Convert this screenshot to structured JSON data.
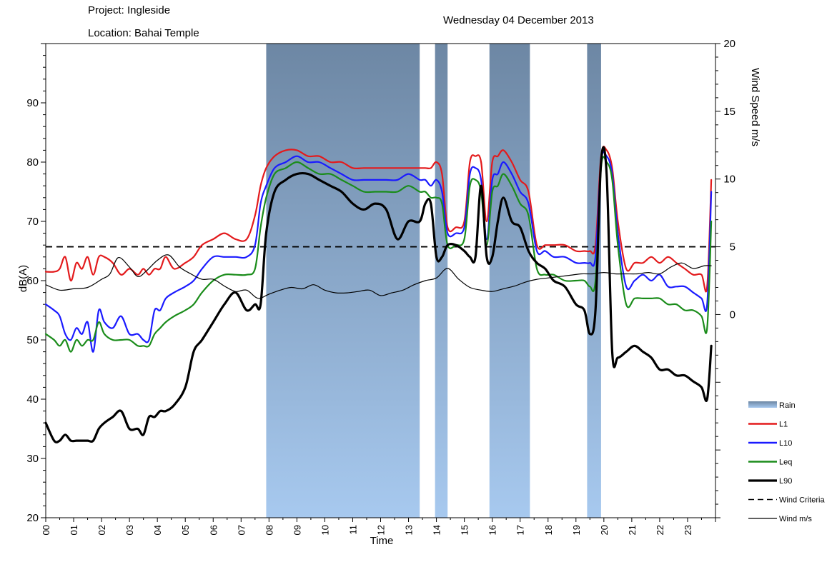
{
  "header": {
    "project": "Project: Ingleside",
    "location": "Location:  Bahai Temple",
    "date": "Wednesday 04 December 2013"
  },
  "chart_data": {
    "type": "line",
    "xlabel": "Time",
    "ylabel": "dB(A)",
    "y2label": "Wind Speed m/s",
    "xlim": [
      0,
      24
    ],
    "ylim": [
      20,
      100
    ],
    "y2lim": [
      -15,
      20
    ],
    "y_ticks": [
      "20",
      "30",
      "40",
      "50",
      "60",
      "70",
      "80",
      "90"
    ],
    "y2_ticks": [
      "20",
      "15",
      "10",
      "5",
      "0"
    ],
    "x_tick_labels": [
      "00",
      "01",
      "02",
      "03",
      "04",
      "05",
      "06",
      "07",
      "08",
      "09",
      "10",
      "11",
      "12",
      "13",
      "14",
      "15",
      "16",
      "17",
      "18",
      "19",
      "20",
      "21",
      "22",
      "23"
    ],
    "grid": false,
    "legend_position": "right-bottom",
    "legend": [
      "Rain",
      "L1",
      "L10",
      "Leq",
      "L90",
      "Wind Criteria",
      "Wind m/s"
    ],
    "rain_periods": [
      [
        7.9,
        13.4
      ],
      [
        13.95,
        14.4
      ],
      [
        15.9,
        17.35
      ],
      [
        19.4,
        19.9
      ]
    ],
    "wind_criteria": 5,
    "series": [
      {
        "name": "L1",
        "color": "#e31a1c",
        "axis": "left",
        "x": [
          0,
          0.3,
          0.5,
          0.7,
          0.9,
          1.1,
          1.3,
          1.5,
          1.7,
          1.9,
          2.1,
          2.4,
          2.7,
          3.0,
          3.3,
          3.5,
          3.7,
          3.9,
          4.1,
          4.3,
          4.6,
          5.0,
          5.3,
          5.6,
          6.0,
          6.4,
          6.8,
          7.2,
          7.5,
          7.7,
          7.9,
          8.2,
          8.6,
          9.0,
          9.4,
          9.8,
          10.2,
          10.6,
          11.0,
          11.4,
          11.8,
          12.2,
          12.6,
          13.0,
          13.4,
          13.6,
          13.8,
          14.0,
          14.2,
          14.4,
          14.7,
          15.0,
          15.2,
          15.4,
          15.6,
          15.8,
          16.0,
          16.2,
          16.4,
          16.7,
          17.0,
          17.3,
          17.6,
          17.9,
          18.2,
          18.6,
          19.0,
          19.3,
          19.5,
          19.7,
          19.9,
          20.1,
          20.3,
          20.5,
          20.8,
          21.1,
          21.4,
          21.7,
          22.0,
          22.3,
          22.6,
          22.9,
          23.2,
          23.5,
          23.7,
          23.85
        ],
        "y": [
          61.5,
          61.5,
          62,
          64,
          60,
          63,
          62,
          64,
          61,
          64,
          64,
          63,
          61,
          62,
          61,
          62,
          61,
          62,
          62,
          64,
          62,
          63,
          64,
          66,
          67,
          68,
          67,
          67,
          71,
          76,
          79,
          81,
          82,
          82,
          81,
          81,
          80,
          80,
          79,
          79,
          79,
          79,
          79,
          79,
          79,
          79,
          79,
          80,
          78,
          69,
          69,
          70,
          80,
          81,
          80,
          70,
          80,
          81,
          82,
          80,
          77,
          75,
          66,
          66,
          66,
          66,
          65,
          65,
          65,
          66,
          81,
          82,
          79,
          70,
          62,
          63,
          63,
          64,
          63,
          64,
          63,
          62,
          61,
          61,
          59,
          77
        ]
      },
      {
        "name": "L10",
        "color": "#1a1aff",
        "axis": "left",
        "x": [
          0,
          0.3,
          0.5,
          0.7,
          0.9,
          1.1,
          1.3,
          1.5,
          1.7,
          1.9,
          2.1,
          2.4,
          2.7,
          3.0,
          3.3,
          3.5,
          3.7,
          3.9,
          4.1,
          4.3,
          4.6,
          5.0,
          5.3,
          5.6,
          6.0,
          6.4,
          6.8,
          7.2,
          7.5,
          7.7,
          7.9,
          8.2,
          8.6,
          9.0,
          9.4,
          9.8,
          10.2,
          10.6,
          11.0,
          11.4,
          11.8,
          12.2,
          12.6,
          13.0,
          13.4,
          13.6,
          13.8,
          14.0,
          14.2,
          14.4,
          14.7,
          15.0,
          15.2,
          15.4,
          15.6,
          15.8,
          16.0,
          16.2,
          16.4,
          16.7,
          17.0,
          17.3,
          17.6,
          17.9,
          18.2,
          18.6,
          19.0,
          19.3,
          19.5,
          19.7,
          19.9,
          20.1,
          20.3,
          20.5,
          20.8,
          21.1,
          21.4,
          21.7,
          22.0,
          22.3,
          22.6,
          22.9,
          23.2,
          23.5,
          23.7,
          23.85
        ],
        "y": [
          56,
          55,
          54,
          51,
          50,
          52,
          51,
          53,
          48,
          55,
          53,
          52,
          54,
          51,
          51,
          50,
          50,
          55,
          55,
          57,
          58,
          59,
          60,
          62,
          64,
          64,
          64,
          64,
          66,
          73,
          76,
          79,
          80,
          81,
          80,
          80,
          79,
          78,
          77,
          77,
          77,
          77,
          77,
          78,
          77,
          77,
          76,
          77,
          75,
          68,
          68,
          69,
          78,
          79,
          77,
          67,
          77,
          78,
          80,
          78,
          75,
          73,
          65,
          65,
          64,
          64,
          63,
          63,
          63,
          64,
          80,
          81,
          78,
          68,
          59,
          60,
          61,
          60,
          61,
          59,
          59,
          59,
          58,
          57,
          56,
          75
        ]
      },
      {
        "name": "Leq",
        "color": "#1a8c1a",
        "axis": "left",
        "x": [
          0,
          0.3,
          0.5,
          0.7,
          0.9,
          1.1,
          1.3,
          1.5,
          1.7,
          1.9,
          2.1,
          2.4,
          2.7,
          3.0,
          3.3,
          3.5,
          3.7,
          3.9,
          4.1,
          4.3,
          4.6,
          5.0,
          5.3,
          5.6,
          6.0,
          6.4,
          6.8,
          7.2,
          7.5,
          7.7,
          7.9,
          8.2,
          8.6,
          9.0,
          9.4,
          9.8,
          10.2,
          10.6,
          11.0,
          11.4,
          11.8,
          12.2,
          12.6,
          13.0,
          13.4,
          13.6,
          13.8,
          14.0,
          14.2,
          14.4,
          14.7,
          15.0,
          15.2,
          15.4,
          15.6,
          15.8,
          16.0,
          16.2,
          16.4,
          16.7,
          17.0,
          17.3,
          17.6,
          17.9,
          18.2,
          18.6,
          19.0,
          19.3,
          19.5,
          19.7,
          19.9,
          20.1,
          20.3,
          20.5,
          20.8,
          21.1,
          21.4,
          21.7,
          22.0,
          22.3,
          22.6,
          22.9,
          23.2,
          23.5,
          23.7,
          23.85
        ],
        "y": [
          51,
          50,
          49,
          50,
          48,
          50,
          49,
          50,
          50,
          53,
          51,
          50,
          50,
          50,
          49,
          49,
          49,
          51,
          52,
          53,
          54,
          55,
          56,
          58,
          60,
          61,
          61,
          61,
          62,
          69,
          74,
          78,
          79,
          80,
          79,
          78,
          78,
          77,
          76,
          75,
          75,
          75,
          75,
          76,
          75,
          75,
          74,
          74,
          73,
          66,
          66,
          67,
          76,
          77,
          75,
          66,
          75,
          76,
          78,
          76,
          73,
          71,
          62,
          61,
          61,
          60,
          60,
          60,
          59,
          60,
          79,
          80,
          77,
          66,
          56,
          57,
          57,
          57,
          57,
          56,
          56,
          55,
          55,
          54,
          52,
          70
        ]
      },
      {
        "name": "L90",
        "color": "#000000",
        "axis": "left",
        "x": [
          0,
          0.3,
          0.5,
          0.7,
          0.9,
          1.1,
          1.3,
          1.5,
          1.7,
          1.9,
          2.1,
          2.4,
          2.7,
          3.0,
          3.3,
          3.5,
          3.7,
          3.9,
          4.1,
          4.3,
          4.6,
          5.0,
          5.3,
          5.6,
          6.0,
          6.4,
          6.8,
          7.2,
          7.5,
          7.7,
          7.9,
          8.2,
          8.6,
          9.0,
          9.4,
          9.8,
          10.2,
          10.6,
          11.0,
          11.4,
          11.8,
          12.2,
          12.6,
          13.0,
          13.4,
          13.6,
          13.8,
          14.0,
          14.2,
          14.4,
          14.7,
          15.0,
          15.2,
          15.4,
          15.6,
          15.8,
          16.0,
          16.2,
          16.4,
          16.7,
          17.0,
          17.3,
          17.6,
          17.9,
          18.2,
          18.6,
          19.0,
          19.3,
          19.5,
          19.7,
          19.9,
          20.1,
          20.3,
          20.5,
          20.8,
          21.1,
          21.4,
          21.7,
          22.0,
          22.3,
          22.6,
          22.9,
          23.2,
          23.5,
          23.7,
          23.85
        ],
        "y": [
          36,
          33,
          33,
          34,
          33,
          33,
          33,
          33,
          33,
          35,
          36,
          37,
          38,
          35,
          35,
          34,
          37,
          37,
          38,
          38,
          39,
          42,
          48,
          50,
          53,
          56,
          58,
          55,
          56,
          56,
          68,
          75,
          77,
          78,
          78,
          77,
          76,
          75,
          73,
          72,
          73,
          72,
          67,
          70,
          70,
          73,
          73,
          64,
          64,
          66,
          66,
          65,
          64,
          64,
          76,
          64,
          64,
          70,
          74,
          70,
          69,
          65,
          63,
          62,
          60,
          59,
          56,
          55,
          51,
          55,
          80,
          78,
          48,
          47,
          48,
          49,
          48,
          47,
          45,
          45,
          44,
          44,
          43,
          42,
          40,
          49
        ]
      },
      {
        "name": "Wind m/s",
        "color": "#000000",
        "axis": "right",
        "x": [
          0,
          0.5,
          1.0,
          1.5,
          2.0,
          2.3,
          2.6,
          3.0,
          3.3,
          3.6,
          4.0,
          4.4,
          4.8,
          5.2,
          5.6,
          6.0,
          6.4,
          6.8,
          7.2,
          7.6,
          8.0,
          8.4,
          8.8,
          9.2,
          9.6,
          10.0,
          10.4,
          10.8,
          11.2,
          11.6,
          12.0,
          12.4,
          12.8,
          13.2,
          13.6,
          14.0,
          14.4,
          14.8,
          15.2,
          15.6,
          16.0,
          16.4,
          16.8,
          17.2,
          17.6,
          18.0,
          18.4,
          18.8,
          19.2,
          19.6,
          20.0,
          20.4,
          20.8,
          21.2,
          21.6,
          22.0,
          22.4,
          22.8,
          23.2,
          23.6,
          23.85
        ],
        "y": [
          2.2,
          1.8,
          1.9,
          2.0,
          2.6,
          3.0,
          4.2,
          3.5,
          2.8,
          3.2,
          4.0,
          4.4,
          3.5,
          3.0,
          2.6,
          2.6,
          2.1,
          1.7,
          1.8,
          1.2,
          1.5,
          1.8,
          2.0,
          1.9,
          2.2,
          1.8,
          1.6,
          1.6,
          1.7,
          1.8,
          1.4,
          1.6,
          1.8,
          2.2,
          2.5,
          2.7,
          3.4,
          2.6,
          2.0,
          1.8,
          1.7,
          1.9,
          2.1,
          2.4,
          2.6,
          2.7,
          2.8,
          2.9,
          3.0,
          3.0,
          3.1,
          3.0,
          3.0,
          3.0,
          3.1,
          3.0,
          3.5,
          3.8,
          3.4,
          3.6,
          3.6
        ]
      }
    ],
    "legend_colors": {
      "Rain": "#8fb2db",
      "L1": "#e31a1c",
      "L10": "#1a1aff",
      "Leq": "#1a8c1a",
      "L90": "#000000",
      "Wind Criteria": "#000000",
      "Wind m/s": "#000000"
    }
  }
}
